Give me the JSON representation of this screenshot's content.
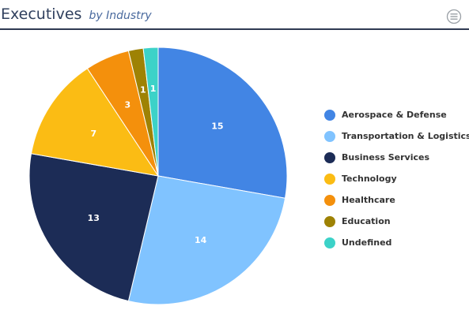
{
  "header": {
    "title": "Executives",
    "subtitle": "by Industry"
  },
  "colors": {
    "title": "#30405e",
    "subtitle": "#4a6a9e",
    "header_rule": "#2f3a52",
    "menu_icon": "#9aa0a6"
  },
  "icons": {
    "menu": "hamburger-menu-icon"
  },
  "chart_data": {
    "type": "pie",
    "title": "",
    "legend_position": "right",
    "series": [
      {
        "values": [
          {
            "name": "Aerospace & Defense",
            "value": 15,
            "label": "15",
            "color": "#4285e4"
          },
          {
            "name": "Transportation & Logistics",
            "value": 14,
            "label": "14",
            "color": "#80c3ff"
          },
          {
            "name": "Business Services",
            "value": 13,
            "label": "13",
            "color": "#1c2c56"
          },
          {
            "name": "Technology",
            "value": 7,
            "label": "7",
            "color": "#fbbc14"
          },
          {
            "name": "Healthcare",
            "value": 3,
            "label": "3",
            "color": "#f4900c"
          },
          {
            "name": "Education",
            "value": 1,
            "label": "1",
            "color": "#9e8204"
          },
          {
            "name": "Undefined",
            "value": 1,
            "label": "1",
            "color": "#3cd2c8"
          }
        ]
      }
    ]
  }
}
